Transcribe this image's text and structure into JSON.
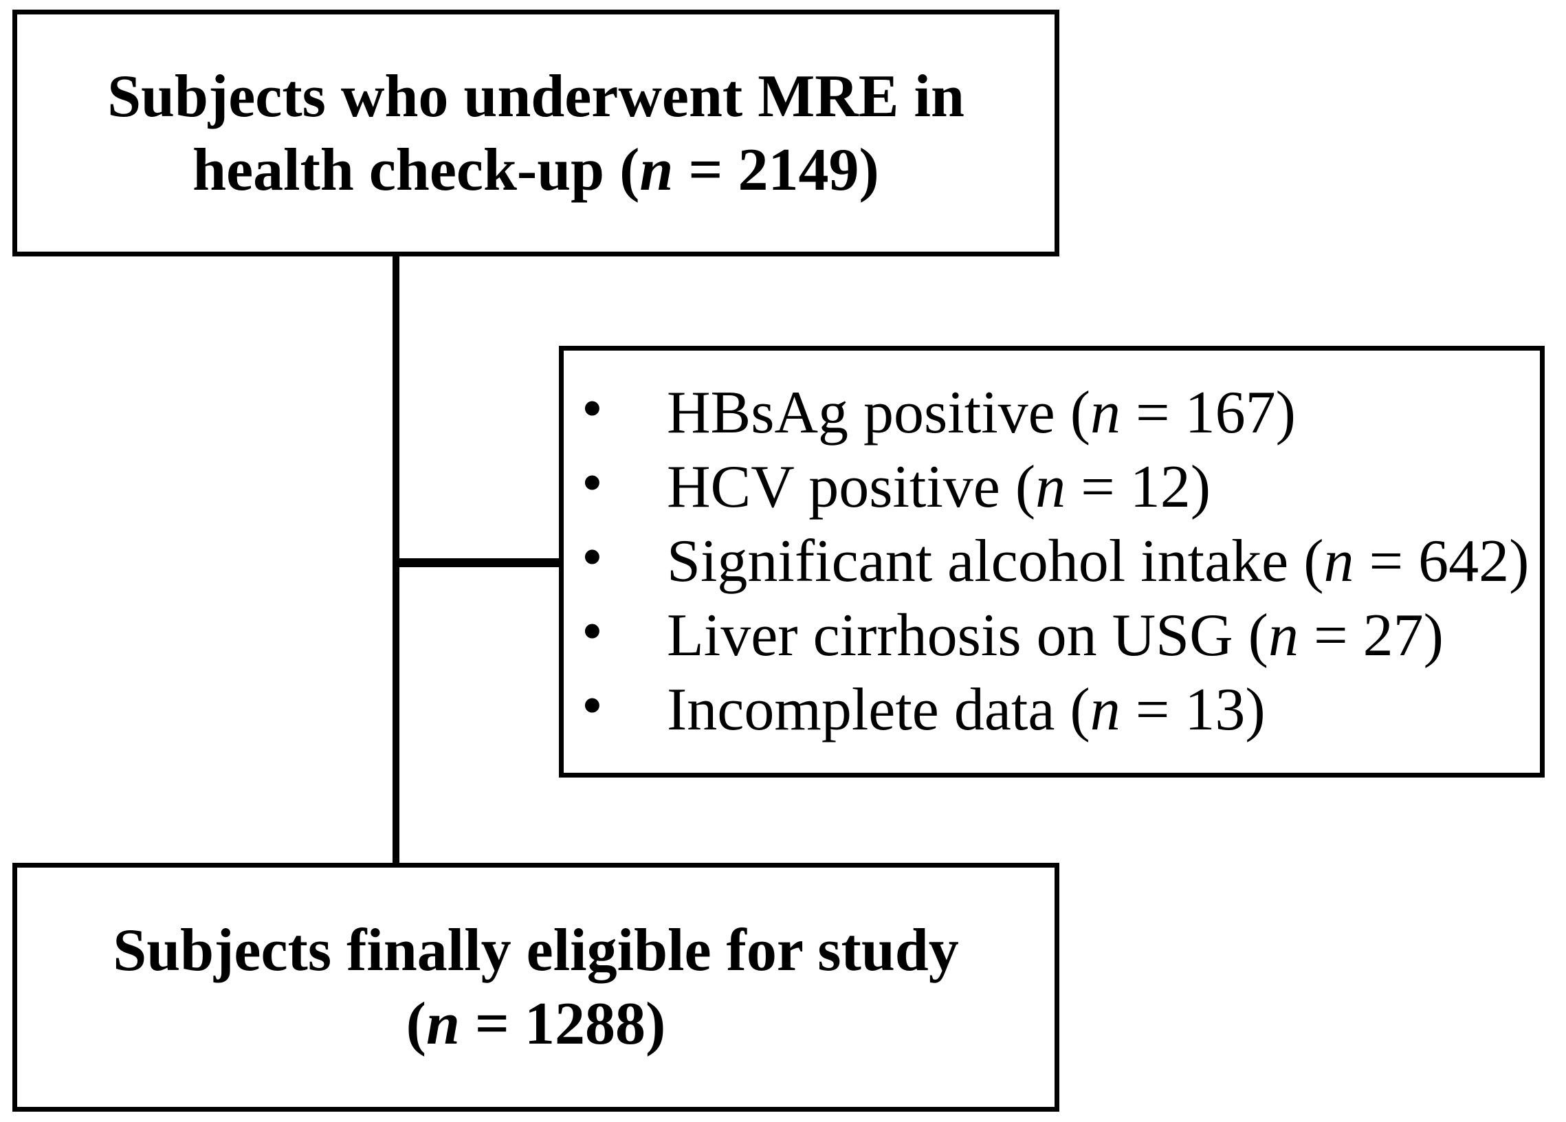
{
  "diagram": {
    "type": "study-flowchart",
    "colors": {
      "line": "#000000",
      "background": "#ffffff",
      "text": "#000000"
    },
    "boxes": {
      "top": {
        "line1": "Subjects who underwent MRE in",
        "line2": {
          "pre": "health check-up (",
          "it": "n",
          "post": " = 2149)"
        },
        "n_value": 2149
      },
      "exclusion": {
        "bullet_glyph": "•",
        "items": [
          {
            "pre": "HBsAg positive (",
            "it": "n",
            "post": " = 167)",
            "n_value": 167
          },
          {
            "pre": "HCV positive (",
            "it": "n",
            "post": " = 12)",
            "n_value": 12
          },
          {
            "pre": "Significant alcohol intake (",
            "it": "n",
            "post": " = 642)",
            "n_value": 642
          },
          {
            "pre": "Liver cirrhosis on USG (",
            "it": "n",
            "post": " = 27)",
            "n_value": 27
          },
          {
            "pre": "Incomplete data (",
            "it": "n",
            "post": " = 13)",
            "n_value": 13
          }
        ]
      },
      "bottom": {
        "line1": "Subjects finally eligible for study",
        "line2": {
          "pre": "(",
          "it": "n",
          "post": " = 1288)"
        },
        "n_value": 1288
      }
    }
  }
}
